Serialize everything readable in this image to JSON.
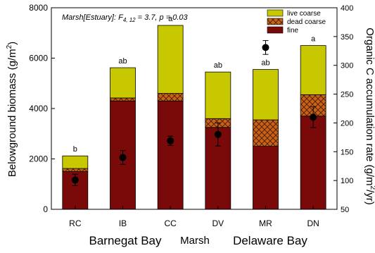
{
  "chart_data": {
    "type": "bar",
    "categories": [
      "RC",
      "IB",
      "CC",
      "DV",
      "MR",
      "DN"
    ],
    "series": [
      {
        "name": "fine",
        "values": [
          1500,
          4300,
          4300,
          3250,
          2500,
          3700
        ],
        "color": "#7a0a0a",
        "pattern": "solid"
      },
      {
        "name": "dead coarse",
        "values": [
          120,
          120,
          300,
          350,
          1050,
          850
        ],
        "color": "#c8641a",
        "pattern": "crosshatch"
      },
      {
        "name": "live coarse",
        "values": [
          500,
          1200,
          2700,
          1850,
          2000,
          1950
        ],
        "color": "#c8c800",
        "pattern": "solid"
      }
    ],
    "bar_labels": [
      "b",
      "ab",
      "a",
      "ab",
      "ab",
      "a"
    ],
    "organic_c": {
      "axis": "right",
      "values": [
        101,
        140,
        169,
        180,
        331,
        210
      ],
      "errors": [
        10,
        12,
        8,
        20,
        12,
        18
      ],
      "marker": "black-circle"
    },
    "annotation": {
      "prefix": "Marsh[Estuary]: ",
      "f_letter": "F",
      "f_sub": "4, 12",
      "rest": " = 3.7, p = 0.03"
    },
    "xlabel": "Marsh",
    "groups": [
      "Barnegat Bay",
      "Delaware Bay"
    ],
    "ylabel_left": {
      "main": "Belowground biomass (g/m",
      "sup": "2",
      "end": ")"
    },
    "ylabel_right": {
      "main": "Organic C accumulation rate (g/m",
      "sup": "2",
      "end": "/yr)"
    },
    "ylim_left": [
      0,
      8000
    ],
    "yticks_left": [
      0,
      2000,
      4000,
      6000,
      8000
    ],
    "ylim_right": [
      50,
      400
    ],
    "yticks_right": [
      50,
      100,
      150,
      200,
      250,
      300,
      350,
      400
    ],
    "legend": {
      "placement": "top-right",
      "entries": [
        "live coarse",
        "dead coarse",
        "fine"
      ]
    }
  }
}
